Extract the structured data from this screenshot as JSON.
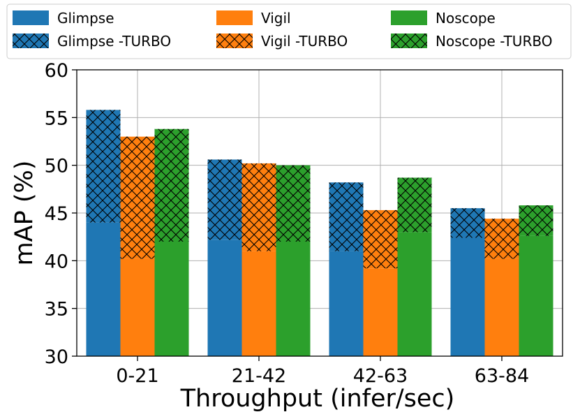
{
  "chart_data": {
    "type": "bar",
    "title": "",
    "xlabel": "Throughput (infer/sec)",
    "ylabel": "mAP (%)",
    "ylim": [
      30,
      60
    ],
    "yticks": [
      30,
      35,
      40,
      45,
      50,
      55,
      60
    ],
    "grid": true,
    "legend_position": "top",
    "categories": [
      "0-21",
      "21-42",
      "42-63",
      "63-84"
    ],
    "series": [
      {
        "name": "Glimpse",
        "turbo_name": "Glimpse -TURBO",
        "color": "#1f77b4",
        "base": [
          44.0,
          42.2,
          41.0,
          42.4
        ],
        "turbo": [
          55.8,
          50.6,
          48.2,
          45.5
        ]
      },
      {
        "name": "Vigil",
        "turbo_name": "Vigil -TURBO",
        "color": "#ff7f0e",
        "base": [
          40.2,
          41.0,
          39.2,
          40.2
        ],
        "turbo": [
          53.0,
          50.2,
          45.3,
          44.4
        ]
      },
      {
        "name": "Noscope",
        "turbo_name": "Noscope -TURBO",
        "color": "#2ca02c",
        "base": [
          42.0,
          42.0,
          43.0,
          42.6
        ],
        "turbo": [
          53.8,
          50.0,
          48.7,
          45.8
        ]
      }
    ],
    "legend": [
      [
        "Glimpse",
        "Vigil",
        "Noscope"
      ],
      [
        "Glimpse -TURBO",
        "Vigil -TURBO",
        "Noscope -TURBO"
      ]
    ]
  }
}
